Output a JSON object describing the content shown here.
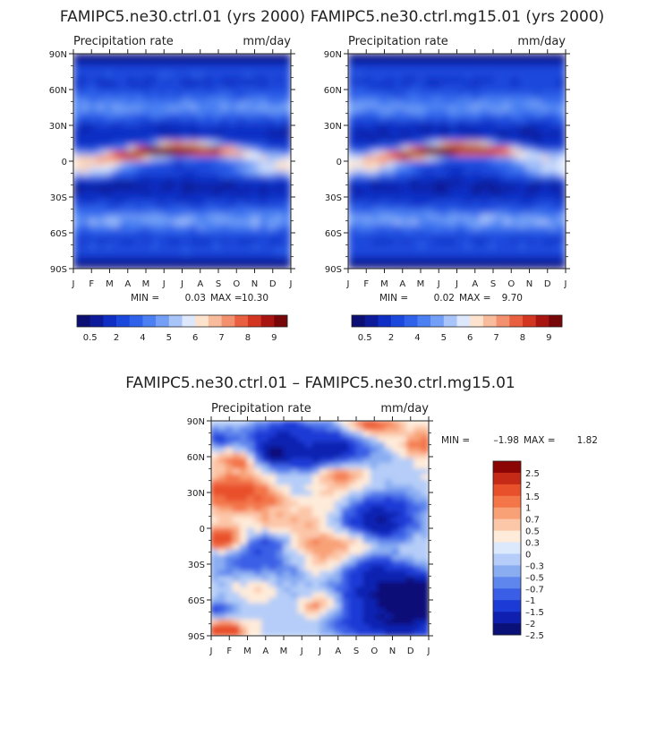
{
  "chart_data": [
    {
      "type": "heatmap",
      "id": "ctrl",
      "title": "FAMIPC5.ne30.ctrl.01 (yrs 2000)",
      "subtitle_left": "Precipitation rate",
      "subtitle_right": "mm/day",
      "y_ticks": [
        "90N",
        "60N",
        "30N",
        "0",
        "30S",
        "60S",
        "90S"
      ],
      "x_ticks": [
        "J",
        "F",
        "M",
        "A",
        "M",
        "J",
        "J",
        "A",
        "S",
        "O",
        "N",
        "D",
        "J"
      ],
      "stats": {
        "min_label": "MIN =",
        "min": "0.03",
        "max_label": "MAX =",
        "max": "10.30"
      },
      "colorbar_labels": [
        "0.5",
        "2",
        "4",
        "5",
        "6",
        "7",
        "8",
        "9"
      ],
      "ylim": [
        -90,
        90
      ]
    },
    {
      "type": "heatmap",
      "id": "mg15",
      "title": "FAMIPC5.ne30.ctrl.mg15.01 (yrs 2000)",
      "subtitle_left": "Precipitation rate",
      "subtitle_right": "mm/day",
      "y_ticks": [
        "90N",
        "60N",
        "30N",
        "0",
        "30S",
        "60S",
        "90S"
      ],
      "x_ticks": [
        "J",
        "F",
        "M",
        "A",
        "M",
        "J",
        "J",
        "A",
        "S",
        "O",
        "N",
        "D",
        "J"
      ],
      "stats": {
        "min_label": "MIN =",
        "min": "0.02",
        "max_label": "MAX =",
        "max": "9.70"
      },
      "colorbar_labels": [
        "0.5",
        "2",
        "4",
        "5",
        "6",
        "7",
        "8",
        "9"
      ],
      "ylim": [
        -90,
        90
      ]
    },
    {
      "type": "heatmap",
      "id": "diff",
      "title": "FAMIPC5.ne30.ctrl.01 – FAMIPC5.ne30.ctrl.mg15.01",
      "subtitle_left": "Precipitation rate",
      "subtitle_right": "mm/day",
      "y_ticks": [
        "90N",
        "60N",
        "30N",
        "0",
        "30S",
        "60S",
        "90S"
      ],
      "x_ticks": [
        "J",
        "F",
        "M",
        "A",
        "M",
        "J",
        "J",
        "A",
        "S",
        "O",
        "N",
        "D",
        "J"
      ],
      "stats": {
        "min_label": "MIN =",
        "min": "–1.98",
        "max_label": "MAX =",
        "max": "1.82"
      },
      "colorbar_labels": [
        "2.5",
        "2",
        "1.5",
        "1",
        "0.7",
        "0.5",
        "0.3",
        "0",
        "–0.3",
        "–0.5",
        "–0.7",
        "–1",
        "–1.5",
        "–2",
        "–2.5"
      ],
      "ylim": [
        -90,
        90
      ]
    }
  ],
  "colors": {
    "seq": [
      "#0b0e72",
      "#0d1a9a",
      "#0f2fc4",
      "#1b48dc",
      "#2e62ea",
      "#4a80f2",
      "#73a0f6",
      "#a8c4f9",
      "#dde8fc",
      "#fde3cd",
      "#f8bb9b",
      "#f3906d",
      "#e8603f",
      "#d23520",
      "#a81410",
      "#770608"
    ],
    "div": [
      "#8b0504",
      "#c42a16",
      "#e8502c",
      "#f37548",
      "#f8a177",
      "#fcc6a8",
      "#feebd9",
      "#dce9fd",
      "#b5cdf8",
      "#8aadf2",
      "#5f86ec",
      "#3a5fe6",
      "#1c3ad6",
      "#0f20b0",
      "#091078"
    ]
  }
}
